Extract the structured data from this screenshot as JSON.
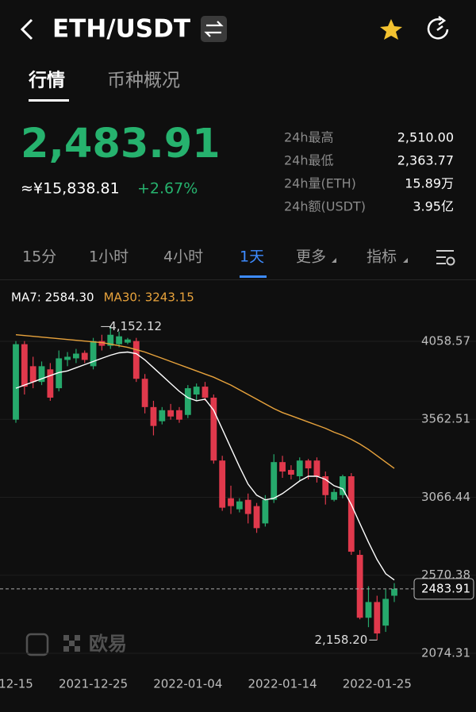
{
  "header": {
    "pair": "ETH/USDT"
  },
  "tabs": [
    "行情",
    "币种概况"
  ],
  "price": {
    "last": "2,483.91",
    "cny": "≈¥15,838.81",
    "change": "+2.67%"
  },
  "stats": [
    [
      "24h最高",
      "2,510.00"
    ],
    [
      "24h最低",
      "2,363.77"
    ],
    [
      "24h量(ETH)",
      "15.89万"
    ],
    [
      "24h额(USDT)",
      "3.95亿"
    ]
  ],
  "intervals": [
    "15分",
    "1小时",
    "4小时",
    "1天",
    "更多",
    "指标"
  ],
  "watermark": "欧易",
  "chart_data": {
    "type": "candlestick",
    "categories": [
      "12-15",
      null,
      null,
      null,
      null,
      null,
      null,
      null,
      null,
      "2021-12-25",
      null,
      null,
      null,
      null,
      null,
      null,
      null,
      null,
      null,
      null,
      "2022-01-04",
      null,
      null,
      null,
      null,
      null,
      null,
      null,
      null,
      null,
      null,
      "2022-01-14",
      null,
      null,
      null,
      null,
      null,
      null,
      null,
      null,
      null,
      null,
      "2022-01-25",
      null,
      null
    ],
    "open": [
      3560,
      4040,
      3900,
      3800,
      3880,
      3760,
      3940,
      3950,
      3985,
      3900,
      4060,
      4030,
      4040,
      4050,
      4060,
      3820,
      3640,
      3550,
      3620,
      3620,
      3590,
      3720,
      3770,
      3700,
      3300,
      3060,
      2990,
      3050,
      3010,
      2900,
      3050,
      3290,
      3240,
      3200,
      3300,
      3300,
      3200,
      3050,
      3080,
      3200,
      2700,
      2300,
      2400,
      2250,
      2440
    ],
    "high": [
      4060,
      4060,
      3960,
      3930,
      3920,
      4000,
      3990,
      4010,
      4000,
      4080,
      4100,
      4152.12,
      4120,
      4080,
      4080,
      3850,
      3680,
      3640,
      3660,
      3640,
      3780,
      3790,
      3800,
      3720,
      3330,
      3140,
      3060,
      3090,
      3030,
      3080,
      3340,
      3330,
      3270,
      3320,
      3310,
      3320,
      3230,
      3120,
      3210,
      3220,
      2730,
      2500,
      2440,
      2480,
      2520
    ],
    "low": [
      3540,
      3720,
      3760,
      3780,
      3680,
      3740,
      3900,
      3920,
      3920,
      3880,
      4000,
      4010,
      4020,
      4040,
      3800,
      3600,
      3460,
      3530,
      3560,
      3540,
      3570,
      3680,
      3680,
      3280,
      2980,
      2960,
      2970,
      2900,
      2840,
      2880,
      3030,
      3190,
      3180,
      3170,
      3180,
      3160,
      3020,
      3040,
      3060,
      2700,
      2290,
      2240,
      2158.2,
      2210,
      2400
    ],
    "close": [
      4040,
      3770,
      3800,
      3900,
      3700,
      3950,
      3960,
      3980,
      3940,
      4060,
      4030,
      4100,
      4090,
      4070,
      3820,
      3640,
      3520,
      3620,
      3580,
      3560,
      3760,
      3770,
      3700,
      3300,
      3000,
      3010,
      3040,
      2960,
      2870,
      3050,
      3290,
      3230,
      3210,
      3300,
      3250,
      3200,
      3080,
      3100,
      3200,
      2720,
      2300,
      2400,
      2200,
      2420,
      2483.91
    ],
    "series": [
      {
        "name": "MA7: 2584.30",
        "color": "#ffffff",
        "values": [
          3760,
          3780,
          3800,
          3820,
          3840,
          3860,
          3870,
          3890,
          3910,
          3930,
          3950,
          3970,
          3985,
          3990,
          3980,
          3940,
          3890,
          3840,
          3790,
          3740,
          3700,
          3680,
          3690,
          3620,
          3500,
          3380,
          3260,
          3150,
          3080,
          3050,
          3060,
          3090,
          3130,
          3170,
          3200,
          3200,
          3180,
          3140,
          3120,
          3020,
          2900,
          2780,
          2670,
          2580,
          2540
        ]
      },
      {
        "name": "MA30: 3243.15",
        "color": "#e8a33c",
        "values": [
          4100,
          4095,
          4090,
          4085,
          4080,
          4075,
          4070,
          4065,
          4060,
          4055,
          4050,
          4040,
          4030,
          4020,
          4005,
          3990,
          3970,
          3950,
          3930,
          3910,
          3890,
          3870,
          3850,
          3830,
          3805,
          3780,
          3750,
          3720,
          3690,
          3660,
          3630,
          3605,
          3585,
          3565,
          3545,
          3525,
          3505,
          3480,
          3460,
          3435,
          3405,
          3370,
          3330,
          3290,
          3250
        ]
      }
    ],
    "up_color": "#26a96c",
    "down_color": "#e0394c",
    "ylim": [
      1963,
      4235
    ],
    "yticks": [
      2074.31,
      2570.38,
      3066.44,
      3562.51,
      4058.57
    ],
    "grid": true,
    "max_label": "4,152.12",
    "min_label": "2,158.20"
  }
}
